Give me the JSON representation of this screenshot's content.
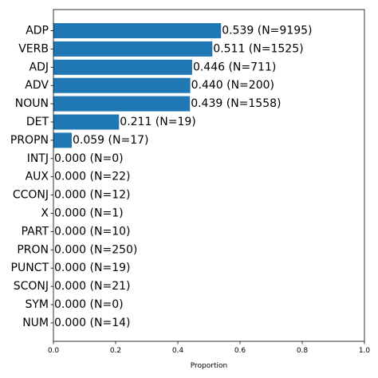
{
  "chart_data": {
    "type": "bar",
    "orientation": "horizontal",
    "categories": [
      "ADP",
      "VERB",
      "ADJ",
      "ADV",
      "NOUN",
      "DET",
      "PROPN",
      "INTJ",
      "AUX",
      "CCONJ",
      "X",
      "PART",
      "PRON",
      "PUNCT",
      "SCONJ",
      "SYM",
      "NUM"
    ],
    "values": [
      0.539,
      0.511,
      0.446,
      0.44,
      0.439,
      0.211,
      0.059,
      0.0,
      0.0,
      0.0,
      0.0,
      0.0,
      0.0,
      0.0,
      0.0,
      0.0,
      0.0
    ],
    "value_labels": [
      "0.539 (N=9195)",
      "0.511 (N=1525)",
      "0.446 (N=711)",
      "0.440 (N=200)",
      "0.439 (N=1558)",
      "0.211 (N=19)",
      "0.059 (N=17)",
      "0.000 (N=0)",
      "0.000 (N=22)",
      "0.000 (N=12)",
      "0.000 (N=1)",
      "0.000 (N=10)",
      "0.000 (N=250)",
      "0.000 (N=19)",
      "0.000 (N=21)",
      "0.000 (N=0)",
      "0.000 (N=14)"
    ],
    "title": "",
    "xlabel": "Proportion",
    "ylabel": "",
    "xlim": [
      0,
      1
    ],
    "xticks": [
      0.0,
      0.2,
      0.4,
      0.6,
      0.8,
      1.0
    ],
    "xtick_labels": [
      "0.0",
      "0.2",
      "0.4",
      "0.6",
      "0.8",
      "1.0"
    ],
    "grid": false,
    "bar_color": "#1f77b4"
  }
}
